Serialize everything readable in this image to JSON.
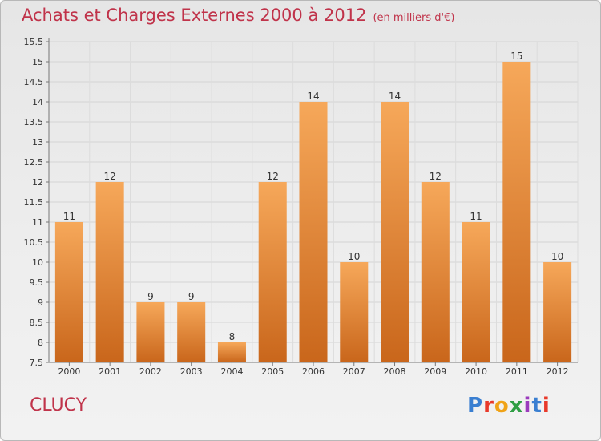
{
  "header": {
    "title": "Achats et Charges Externes 2000 à 2012",
    "unit": "(en milliers d'€)"
  },
  "footer": {
    "place": "CLUCY",
    "logo": "Proxiti",
    "logo_colors": [
      "#3a7fd1",
      "#e8392a",
      "#f0a318",
      "#2f9e44",
      "#9b3bbd",
      "#3a7fd1",
      "#e8392a"
    ]
  },
  "colors": {
    "title": "#c0334a",
    "bar_top": "#f6a85a",
    "bar_bottom": "#c9661b"
  },
  "chart_data": {
    "type": "bar",
    "title": "Achats et Charges Externes 2000 à 2012",
    "categories": [
      "2000",
      "2001",
      "2002",
      "2003",
      "2004",
      "2005",
      "2006",
      "2007",
      "2008",
      "2009",
      "2010",
      "2011",
      "2012"
    ],
    "values": [
      11,
      12,
      9,
      9,
      8,
      12,
      14,
      10,
      14,
      12,
      11,
      15,
      10
    ],
    "ylim": [
      7.5,
      15.5
    ],
    "yticks": [
      "7.5",
      "8",
      "8.5",
      "9",
      "9.5",
      "10",
      "10.5",
      "11",
      "11.5",
      "12",
      "12.5",
      "13",
      "13.5",
      "14",
      "14.5",
      "15",
      "15.5"
    ],
    "xlabel": "",
    "ylabel": "",
    "grid": true
  }
}
